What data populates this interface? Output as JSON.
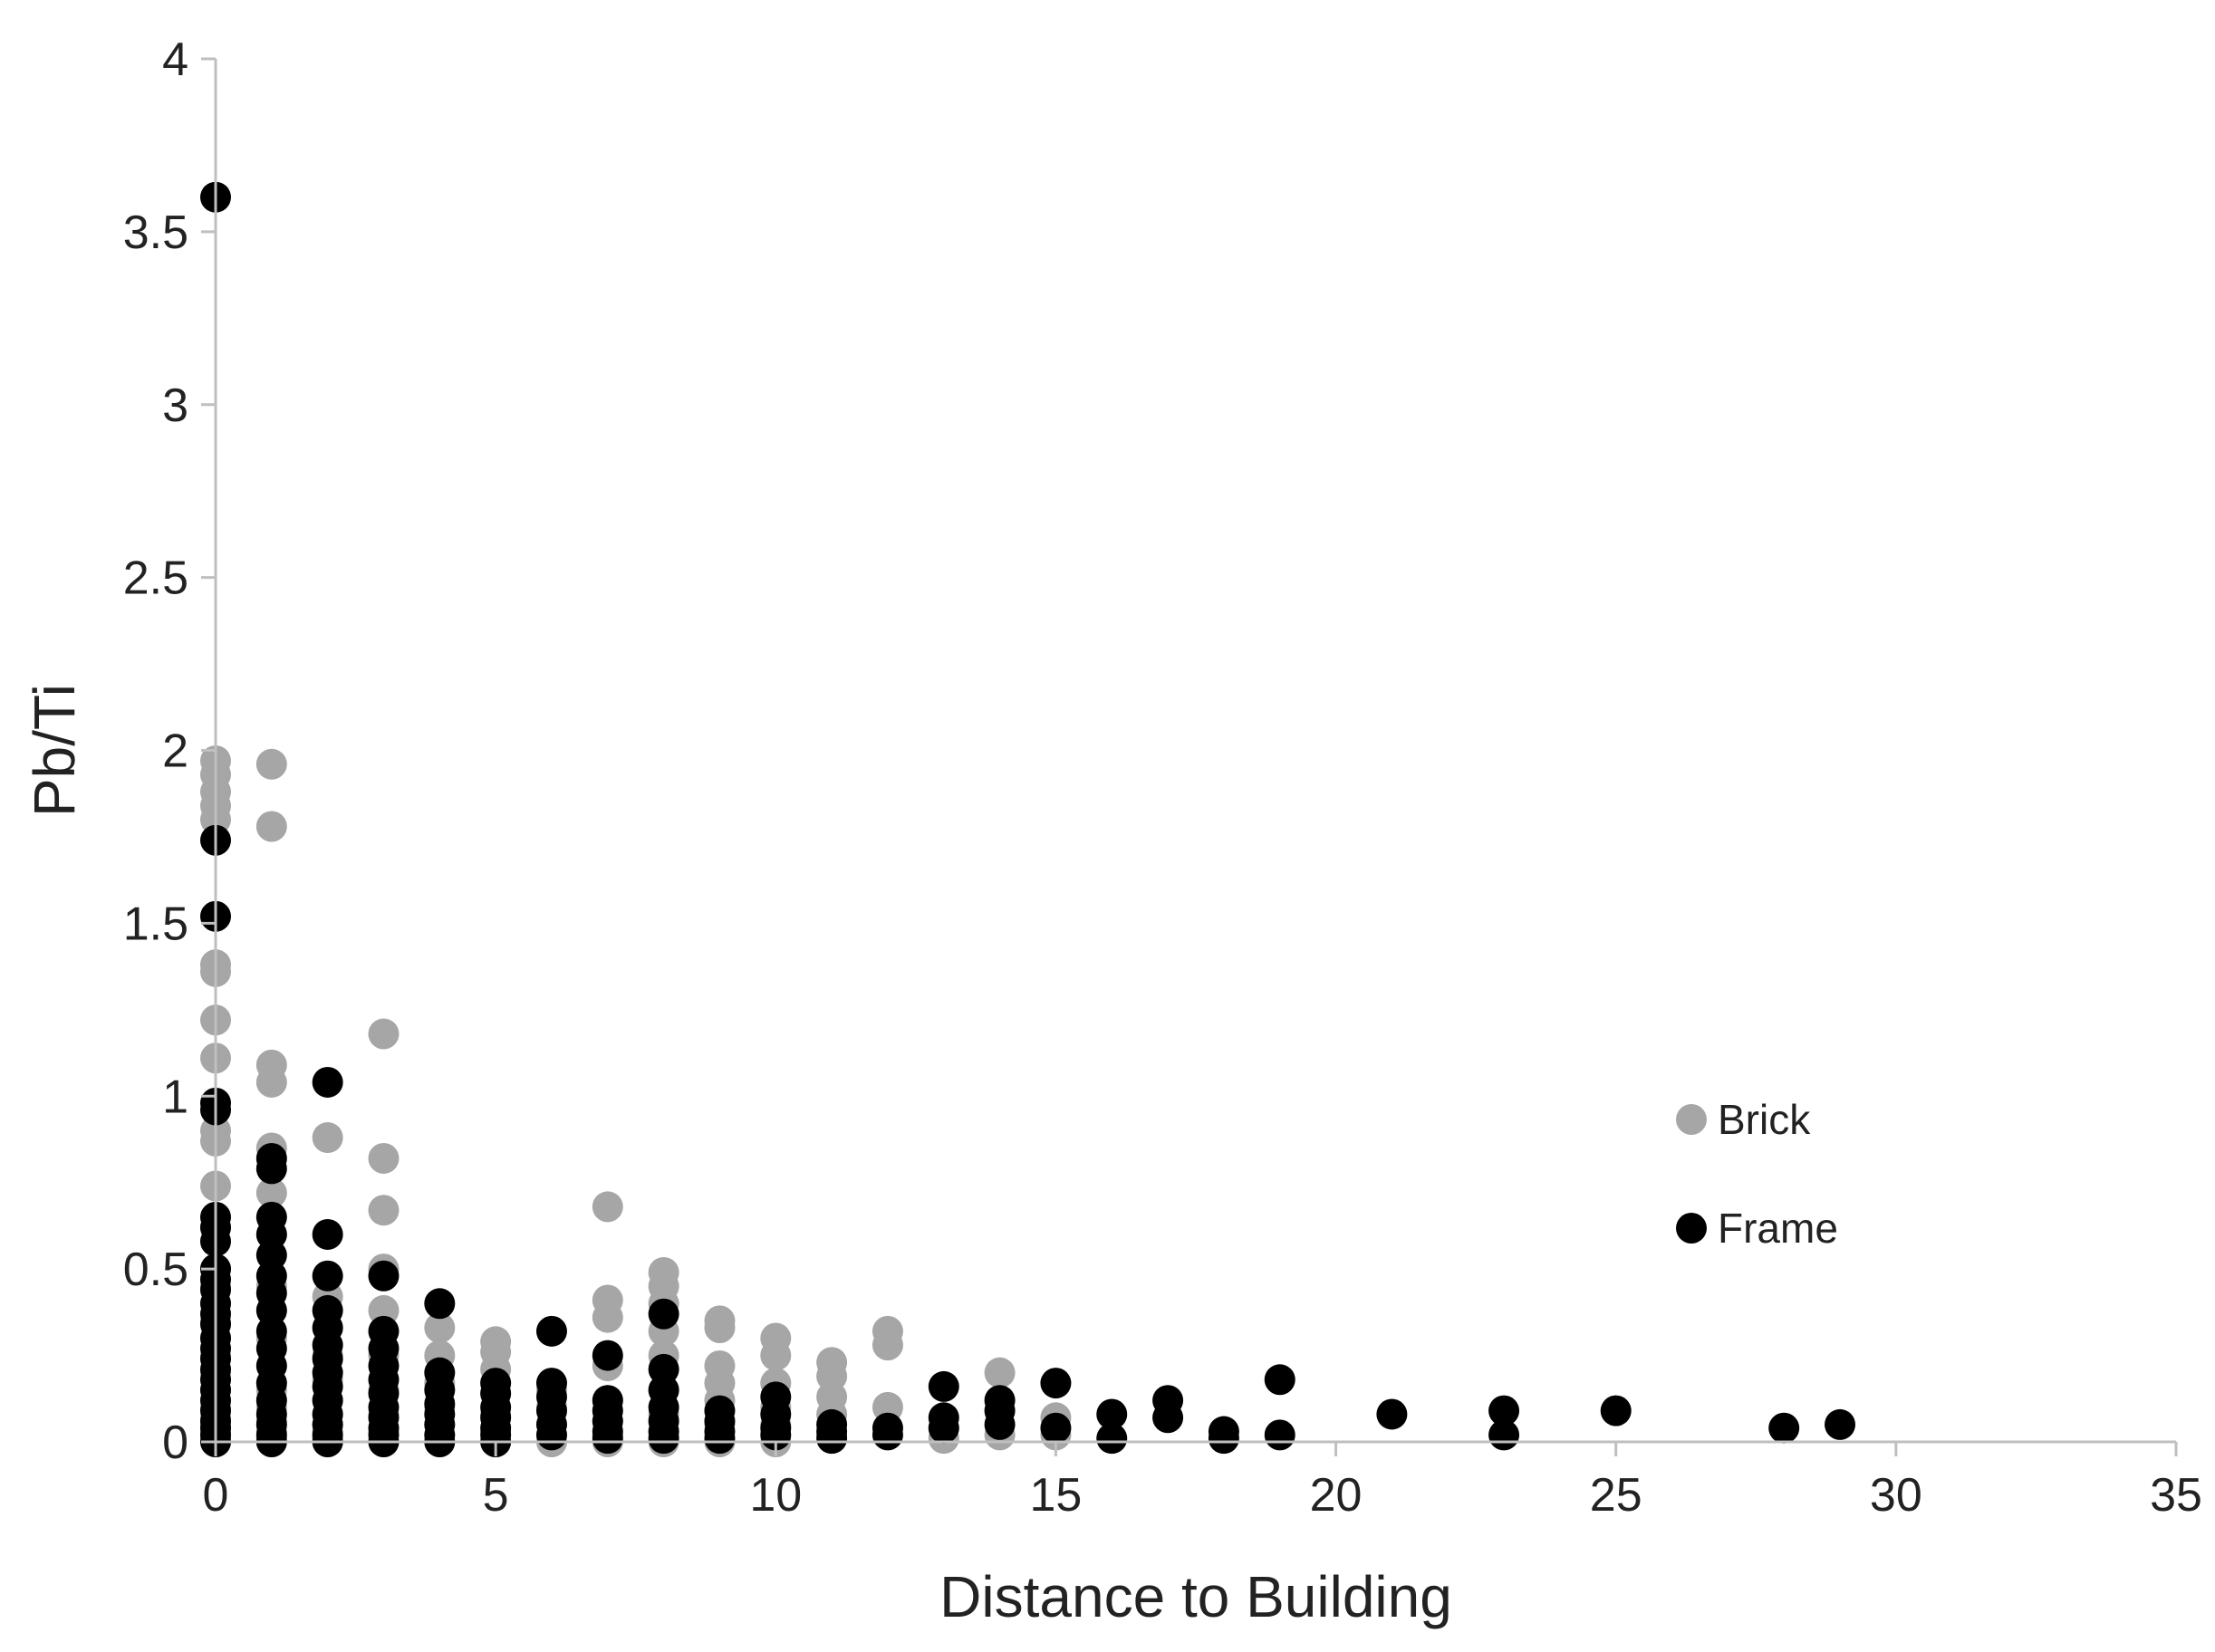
{
  "chart_data": {
    "type": "scatter",
    "title": "",
    "xlabel": "Distance to Building",
    "ylabel": "Pb/Ti",
    "xlim": [
      0,
      35
    ],
    "ylim": [
      0,
      4
    ],
    "xticks": [
      0,
      5,
      10,
      15,
      20,
      25,
      30,
      35
    ],
    "yticks": [
      0,
      0.5,
      1,
      1.5,
      2,
      2.5,
      3,
      3.5,
      4
    ],
    "grid": false,
    "legend_position": "right",
    "colors": {
      "Brick": "#a6a6a6",
      "Frame": "#000000"
    },
    "series": [
      {
        "name": "Brick",
        "x": [
          0,
          0,
          0,
          0,
          0,
          0,
          0,
          0,
          0,
          0,
          0,
          0,
          0,
          0,
          0,
          0,
          0,
          0,
          0,
          0,
          0,
          0,
          0,
          0,
          0,
          0,
          0,
          1,
          1,
          1,
          1,
          1,
          1,
          1,
          1,
          1,
          1,
          1,
          1,
          1,
          1,
          1,
          1,
          1,
          2,
          2,
          2,
          2,
          2,
          2,
          2,
          2,
          2,
          2,
          2,
          3,
          3,
          3,
          3,
          3,
          3,
          3,
          3,
          3,
          3,
          4,
          4,
          4,
          4,
          4,
          4,
          4,
          5,
          5,
          5,
          5,
          5,
          5,
          5,
          6,
          6,
          6,
          6,
          6,
          7,
          7,
          7,
          7,
          7,
          7,
          7,
          7,
          8,
          8,
          8,
          8,
          8,
          8,
          8,
          8,
          8,
          9,
          9,
          9,
          9,
          9,
          9,
          9,
          10,
          10,
          10,
          10,
          10,
          10,
          11,
          11,
          11,
          11,
          11,
          12,
          12,
          12,
          13,
          13,
          14,
          14,
          15,
          15
        ],
        "y": [
          1.97,
          1.93,
          1.88,
          1.84,
          1.8,
          1.38,
          1.36,
          1.22,
          1.11,
          0.9,
          0.87,
          0.74,
          0.62,
          0.5,
          0.45,
          0.4,
          0.35,
          0.3,
          0.25,
          0.2,
          0.15,
          0.1,
          0.07,
          0.05,
          0.03,
          0.01,
          0.0,
          1.96,
          1.78,
          1.09,
          1.04,
          0.85,
          0.72,
          0.6,
          0.45,
          0.38,
          0.3,
          0.22,
          0.15,
          0.1,
          0.06,
          0.03,
          0.01,
          0.0,
          0.88,
          0.42,
          0.33,
          0.25,
          0.18,
          0.12,
          0.08,
          0.05,
          0.03,
          0.01,
          0.0,
          1.18,
          0.82,
          0.67,
          0.5,
          0.38,
          0.25,
          0.15,
          0.08,
          0.03,
          0.0,
          0.33,
          0.25,
          0.17,
          0.1,
          0.05,
          0.02,
          0.0,
          0.29,
          0.26,
          0.21,
          0.14,
          0.08,
          0.03,
          0.0,
          0.15,
          0.1,
          0.05,
          0.02,
          0.0,
          0.68,
          0.41,
          0.36,
          0.22,
          0.12,
          0.06,
          0.02,
          0.0,
          0.49,
          0.45,
          0.4,
          0.32,
          0.25,
          0.15,
          0.08,
          0.03,
          0.0,
          0.35,
          0.33,
          0.22,
          0.17,
          0.12,
          0.05,
          0.0,
          0.3,
          0.25,
          0.17,
          0.1,
          0.05,
          0.0,
          0.23,
          0.19,
          0.13,
          0.08,
          0.02,
          0.32,
          0.28,
          0.1,
          0.04,
          0.01,
          0.2,
          0.02,
          0.07,
          0.02
        ]
      },
      {
        "name": "Frame",
        "x": [
          0,
          0,
          0,
          0,
          0,
          0,
          0,
          0,
          0,
          0,
          0,
          0,
          0,
          0,
          0,
          0,
          0,
          0,
          0,
          0,
          0,
          0,
          0,
          0,
          0,
          0,
          1,
          1,
          1,
          1,
          1,
          1,
          1,
          1,
          1,
          1,
          1,
          1,
          1,
          1,
          1,
          1,
          1,
          2,
          2,
          2,
          2,
          2,
          2,
          2,
          2,
          2,
          2,
          2,
          2,
          2,
          2,
          3,
          3,
          3,
          3,
          3,
          3,
          3,
          3,
          3,
          3,
          3,
          4,
          4,
          4,
          4,
          4,
          4,
          4,
          4,
          5,
          5,
          5,
          5,
          5,
          5,
          5,
          6,
          6,
          6,
          6,
          6,
          6,
          7,
          7,
          7,
          7,
          7,
          7,
          8,
          8,
          8,
          8,
          8,
          8,
          8,
          9,
          9,
          9,
          9,
          10,
          10,
          10,
          10,
          11,
          11,
          11,
          12,
          12,
          13,
          13,
          13,
          14,
          14,
          14,
          15,
          15,
          16,
          16,
          17,
          17,
          18,
          18,
          19,
          19,
          21,
          23,
          23,
          25,
          28,
          29
        ],
        "y": [
          3.6,
          1.74,
          1.52,
          0.98,
          0.96,
          0.65,
          0.62,
          0.58,
          0.5,
          0.47,
          0.44,
          0.4,
          0.37,
          0.34,
          0.3,
          0.27,
          0.24,
          0.21,
          0.18,
          0.15,
          0.12,
          0.09,
          0.06,
          0.04,
          0.02,
          0.0,
          0.82,
          0.79,
          0.65,
          0.6,
          0.54,
          0.48,
          0.43,
          0.38,
          0.32,
          0.27,
          0.22,
          0.17,
          0.12,
          0.08,
          0.05,
          0.02,
          0.0,
          1.04,
          0.6,
          0.48,
          0.38,
          0.33,
          0.28,
          0.24,
          0.2,
          0.16,
          0.12,
          0.08,
          0.05,
          0.02,
          0.0,
          0.48,
          0.32,
          0.27,
          0.22,
          0.18,
          0.14,
          0.1,
          0.07,
          0.04,
          0.02,
          0.0,
          0.4,
          0.2,
          0.15,
          0.11,
          0.08,
          0.05,
          0.02,
          0.0,
          0.17,
          0.14,
          0.1,
          0.07,
          0.04,
          0.02,
          0.0,
          0.32,
          0.17,
          0.13,
          0.09,
          0.05,
          0.02,
          0.25,
          0.12,
          0.09,
          0.06,
          0.03,
          0.01,
          0.37,
          0.21,
          0.15,
          0.1,
          0.06,
          0.03,
          0.01,
          0.09,
          0.06,
          0.03,
          0.01,
          0.13,
          0.08,
          0.04,
          0.02,
          0.05,
          0.03,
          0.01,
          0.04,
          0.02,
          0.16,
          0.07,
          0.04,
          0.12,
          0.09,
          0.05,
          0.17,
          0.04,
          0.08,
          0.01,
          0.12,
          0.07,
          0.03,
          0.01,
          0.18,
          0.02,
          0.08,
          0.09,
          0.02,
          0.09,
          0.04,
          0.05
        ]
      }
    ]
  }
}
